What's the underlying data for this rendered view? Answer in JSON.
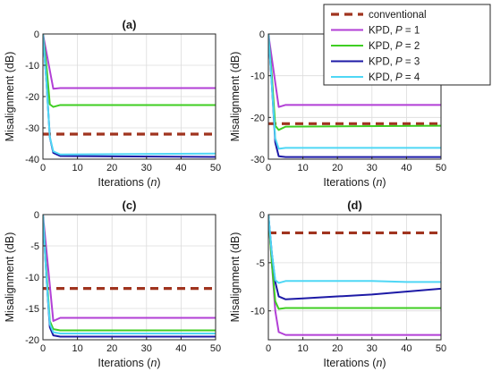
{
  "chart_data": [
    {
      "type": "line",
      "title": "(a)",
      "xlabel": "Iterations (n)",
      "ylabel": "Misalignment (dB)",
      "xlim": [
        0,
        50
      ],
      "ylim": [
        -40,
        0
      ],
      "xticks": [
        0,
        10,
        20,
        30,
        40,
        50
      ],
      "yticks": [
        -40,
        -30,
        -20,
        -10,
        0
      ],
      "grid": true,
      "series": [
        {
          "name": "conventional",
          "style": "dashed",
          "x": [
            0,
            50
          ],
          "y": [
            -32,
            -32
          ]
        },
        {
          "name": "KPD, P = 1",
          "x": [
            0,
            3,
            5,
            50
          ],
          "y": [
            0,
            -17.5,
            -17.3,
            -17.3
          ]
        },
        {
          "name": "KPD, P = 2",
          "x": [
            0,
            1,
            2,
            3,
            5,
            50
          ],
          "y": [
            0,
            -10,
            -22.5,
            -23.3,
            -22.7,
            -22.7
          ]
        },
        {
          "name": "KPD, P = 3",
          "x": [
            0,
            1,
            2,
            3,
            5,
            50
          ],
          "y": [
            0,
            -15,
            -33,
            -38,
            -39,
            -39.3
          ]
        },
        {
          "name": "KPD, P = 4",
          "x": [
            0,
            1,
            2,
            3,
            5,
            50
          ],
          "y": [
            0,
            -15,
            -33,
            -37.5,
            -38.5,
            -38.2
          ]
        }
      ]
    },
    {
      "type": "line",
      "title": "(b)",
      "xlabel": "Iterations (n)",
      "ylabel": "Misalignment (dB)",
      "xlim": [
        0,
        50
      ],
      "ylim": [
        -30,
        0
      ],
      "xticks": [
        0,
        10,
        20,
        30,
        40,
        50
      ],
      "yticks": [
        -30,
        -20,
        -10,
        0
      ],
      "grid": true,
      "legend": "top-right",
      "series": [
        {
          "name": "conventional",
          "style": "dashed",
          "x": [
            0,
            50
          ],
          "y": [
            -21.5,
            -21.5
          ]
        },
        {
          "name": "KPD, P = 1",
          "x": [
            0,
            3,
            5,
            50
          ],
          "y": [
            0,
            -17.5,
            -17,
            -17
          ]
        },
        {
          "name": "KPD, P = 2",
          "x": [
            0,
            1,
            2,
            3,
            5,
            50
          ],
          "y": [
            0,
            -10,
            -22,
            -23,
            -22.2,
            -22
          ]
        },
        {
          "name": "KPD, P = 3",
          "x": [
            0,
            1,
            2,
            3,
            5,
            50
          ],
          "y": [
            0,
            -12,
            -26,
            -29.3,
            -29.5,
            -29.5
          ]
        },
        {
          "name": "KPD, P = 4",
          "x": [
            0,
            1,
            2,
            3,
            5,
            50
          ],
          "y": [
            0,
            -12,
            -25,
            -27.5,
            -27.3,
            -27.3
          ]
        }
      ]
    },
    {
      "type": "line",
      "title": "(c)",
      "xlabel": "Iterations (n)",
      "ylabel": "Misalignment (dB)",
      "xlim": [
        0,
        50
      ],
      "ylim": [
        -20,
        0
      ],
      "xticks": [
        0,
        10,
        20,
        30,
        40,
        50
      ],
      "yticks": [
        -20,
        -15,
        -10,
        -5,
        0
      ],
      "grid": true,
      "series": [
        {
          "name": "conventional",
          "style": "dashed",
          "x": [
            0,
            50
          ],
          "y": [
            -11.8,
            -11.8
          ]
        },
        {
          "name": "KPD, P = 1",
          "x": [
            0,
            3,
            5,
            50
          ],
          "y": [
            0,
            -17,
            -16.5,
            -16.5
          ]
        },
        {
          "name": "KPD, P = 2",
          "x": [
            0,
            1,
            2,
            3,
            5,
            50
          ],
          "y": [
            0,
            -9,
            -17,
            -18.3,
            -18.5,
            -18.5
          ]
        },
        {
          "name": "KPD, P = 3",
          "x": [
            0,
            1,
            2,
            3,
            5,
            50
          ],
          "y": [
            0,
            -10,
            -18,
            -19.3,
            -19.5,
            -19.5
          ]
        },
        {
          "name": "KPD, P = 4",
          "x": [
            0,
            1,
            2,
            3,
            5,
            50
          ],
          "y": [
            0,
            -10,
            -17.5,
            -18.8,
            -19,
            -19
          ]
        }
      ]
    },
    {
      "type": "line",
      "title": "(d)",
      "xlabel": "Iterations (n)",
      "ylabel": "Misalignment (dB)",
      "xlim": [
        0,
        50
      ],
      "ylim": [
        -13,
        0
      ],
      "xticks": [
        0,
        10,
        20,
        30,
        40,
        50
      ],
      "yticks": [
        -10,
        -5,
        0
      ],
      "grid": true,
      "series": [
        {
          "name": "conventional",
          "style": "dashed",
          "x": [
            0,
            50
          ],
          "y": [
            -1.9,
            -1.9
          ]
        },
        {
          "name": "KPD, P = 1",
          "x": [
            0,
            1,
            2,
            3,
            5,
            50
          ],
          "y": [
            0,
            -5,
            -10,
            -12.2,
            -12.5,
            -12.5
          ]
        },
        {
          "name": "KPD, P = 2",
          "x": [
            0,
            1,
            2,
            3,
            5,
            50
          ],
          "y": [
            0,
            -5,
            -9,
            -9.8,
            -9.7,
            -9.7
          ]
        },
        {
          "name": "KPD, P = 3",
          "x": [
            0,
            1,
            2,
            3,
            5,
            10,
            20,
            30,
            40,
            50
          ],
          "y": [
            0,
            -4,
            -7,
            -8.5,
            -8.8,
            -8.7,
            -8.5,
            -8.3,
            -8.0,
            -7.7
          ]
        },
        {
          "name": "KPD, P = 4",
          "x": [
            0,
            1,
            2,
            3,
            5,
            10,
            20,
            30,
            40,
            50
          ],
          "y": [
            0,
            -4,
            -6.8,
            -7.1,
            -6.9,
            -6.9,
            -6.9,
            -6.9,
            -7.0,
            -7.0
          ]
        }
      ]
    }
  ],
  "legend": {
    "entries": [
      "conventional",
      "KPD, P = 1",
      "KPD, P = 2",
      "KPD, P = 3",
      "KPD, P = 4"
    ]
  },
  "colors": {
    "conventional": "#a0341f",
    "P1": "#b23fd6",
    "P2": "#3fce22",
    "P3": "#1d1aa6",
    "P4": "#4fd7f5",
    "grid": "#dcdcdc",
    "axis": "#262626"
  }
}
